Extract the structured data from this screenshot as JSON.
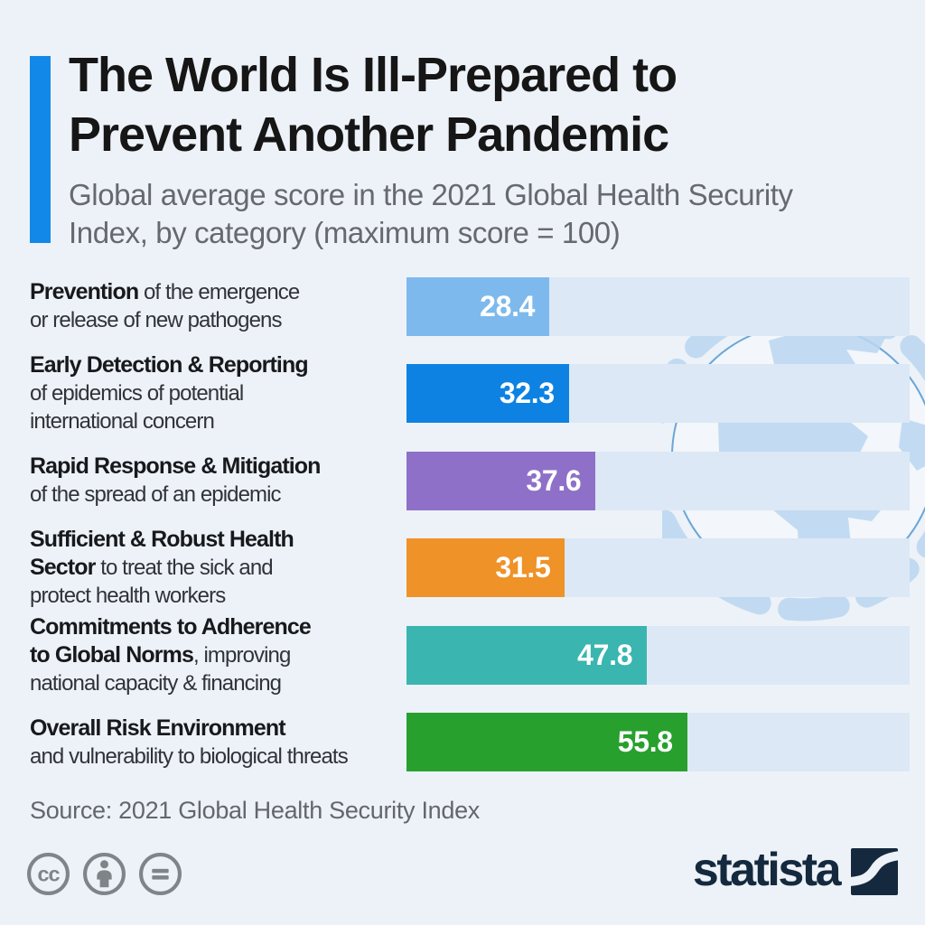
{
  "header": {
    "title_line1": "The World Is Ill-Prepared to",
    "title_line2": "Prevent Another Pandemic",
    "subtitle_line1": "Global average score in the 2021 Global Health Security",
    "subtitle_line2": "Index, by category (maximum score = 100)"
  },
  "chart_data": {
    "type": "bar",
    "orientation": "horizontal",
    "title": "The World Is Ill-Prepared to Prevent Another Pandemic",
    "subtitle": "Global average score in the 2021 Global Health Security Index, by category (maximum score = 100)",
    "xlim": [
      0,
      100
    ],
    "max_score": 100,
    "grid": false,
    "legend": false,
    "categories": [
      "Prevention",
      "Early Detection & Reporting",
      "Rapid Response & Mitigation",
      "Sufficient & Robust Health Sector",
      "Commitments to Adherence to Global Norms",
      "Overall Risk Environment"
    ],
    "category_descriptions": [
      "of the emergence or release of new pathogens",
      "of epidemics of potential international concern",
      "of the spread of an epidemic",
      "to treat the sick and protect health workers",
      ", improving national capacity & financing",
      "and vulnerability to biological threats"
    ],
    "values": [
      28.4,
      32.3,
      37.6,
      31.5,
      47.8,
      55.8
    ],
    "bar_colors": [
      "#7db9ec",
      "#0d82e2",
      "#8e70c8",
      "#ef9227",
      "#3ab5b0",
      "#28a02e"
    ],
    "track_color": "#dce8f5",
    "value_text_color": "#ffffff",
    "rows": [
      {
        "value": 28.4,
        "color": "#7db9ec",
        "lines": [
          [
            {
              "b": true,
              "t": "Prevention"
            },
            {
              "b": false,
              "t": " of the emergence"
            }
          ],
          [
            {
              "b": false,
              "t": "or release of new pathogens"
            }
          ]
        ]
      },
      {
        "value": 32.3,
        "color": "#0d82e2",
        "lines": [
          [
            {
              "b": true,
              "t": "Early Detection & Reporting"
            }
          ],
          [
            {
              "b": false,
              "t": "of epidemics of potential"
            }
          ],
          [
            {
              "b": false,
              "t": "international concern"
            }
          ]
        ]
      },
      {
        "value": 37.6,
        "color": "#8e70c8",
        "lines": [
          [
            {
              "b": true,
              "t": "Rapid Response & Mitigation"
            }
          ],
          [
            {
              "b": false,
              "t": "of the spread of an epidemic"
            }
          ]
        ]
      },
      {
        "value": 31.5,
        "color": "#ef9227",
        "lines": [
          [
            {
              "b": true,
              "t": "Sufficient & Robust Health"
            }
          ],
          [
            {
              "b": true,
              "t": "Sector"
            },
            {
              "b": false,
              "t": " to treat the sick and"
            }
          ],
          [
            {
              "b": false,
              "t": "protect health workers"
            }
          ]
        ]
      },
      {
        "value": 47.8,
        "color": "#3ab5b0",
        "lines": [
          [
            {
              "b": true,
              "t": "Commitments to Adherence"
            }
          ],
          [
            {
              "b": true,
              "t": "to Global Norms"
            },
            {
              "b": false,
              "t": ", improving"
            }
          ],
          [
            {
              "b": false,
              "t": "national capacity & financing"
            }
          ]
        ]
      },
      {
        "value": 55.8,
        "color": "#28a02e",
        "lines": [
          [
            {
              "b": true,
              "t": "Overall Risk Environment"
            }
          ],
          [
            {
              "b": false,
              "t": "and vulnerability to biological threats"
            }
          ]
        ]
      }
    ]
  },
  "footer": {
    "source": "Source: 2021 Global Health Security Index",
    "license_icons": [
      "cc",
      "attribution",
      "no-derivatives"
    ],
    "brand": "statista"
  },
  "colors": {
    "background": "#edf2f8",
    "accent_bar": "#1289e8",
    "title_text": "#161616",
    "subtitle_text": "#66696d",
    "track": "#dce8f5",
    "brand_navy": "#15293e",
    "license_gray": "#7f8488",
    "watermark_blue": "#b9d6f0"
  }
}
